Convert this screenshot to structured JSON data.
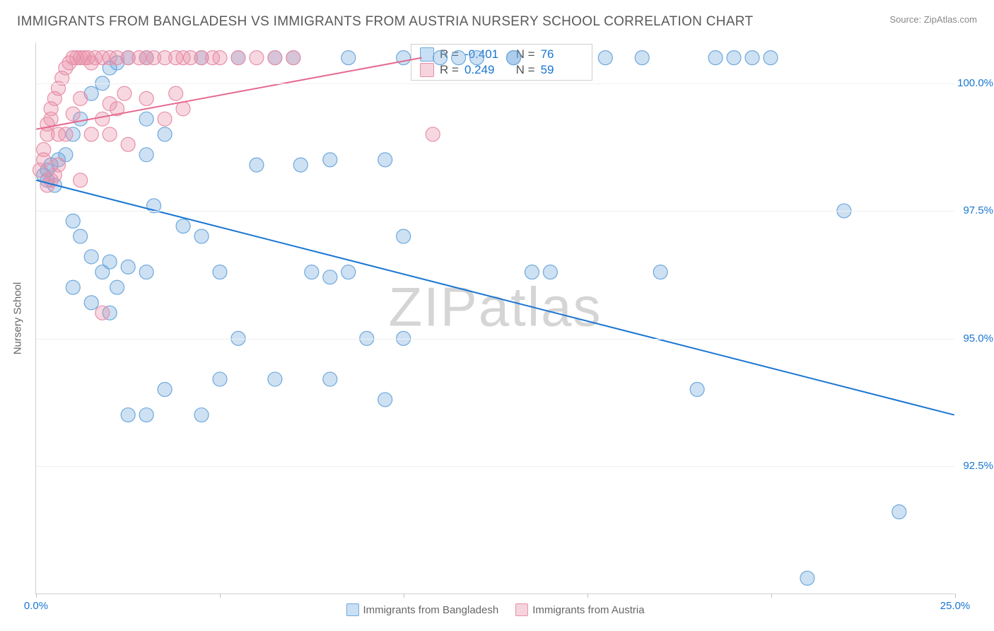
{
  "title": "IMMIGRANTS FROM BANGLADESH VS IMMIGRANTS FROM AUSTRIA NURSERY SCHOOL CORRELATION CHART",
  "source": "Source: ZipAtlas.com",
  "watermark": "ZIPatlas",
  "chart": {
    "type": "scatter",
    "ylabel": "Nursery School",
    "xlim": [
      0,
      25
    ],
    "ylim": [
      90.0,
      100.8
    ],
    "ytick_values": [
      92.5,
      95.0,
      97.5,
      100.0
    ],
    "ytick_labels": [
      "92.5%",
      "95.0%",
      "97.5%",
      "100.0%"
    ],
    "xtick_values": [
      0,
      5,
      10,
      15,
      20,
      25
    ],
    "xtick_labels": [
      "0.0%",
      "",
      "",
      "",
      "",
      "25.0%"
    ],
    "grid_color": "#f0f0f0",
    "axis_color": "#d0d0d0",
    "label_color": "#1976d2",
    "marker_radius": 10,
    "marker_fill_opacity": 0.35,
    "line_width": 2,
    "series": [
      {
        "name": "Immigrants from Bangladesh",
        "color": "#6fa8dc",
        "line_color": "#1976d2",
        "R": "-0.401",
        "N": "76",
        "regression": {
          "x1": 0,
          "y1": 98.1,
          "x2": 25,
          "y2": 93.5
        },
        "points": [
          [
            0.2,
            98.2
          ],
          [
            0.3,
            98.3
          ],
          [
            0.3,
            98.1
          ],
          [
            0.5,
            98.0
          ],
          [
            0.4,
            98.4
          ],
          [
            0.6,
            98.5
          ],
          [
            0.8,
            98.6
          ],
          [
            1.0,
            99.0
          ],
          [
            1.2,
            99.3
          ],
          [
            1.5,
            99.8
          ],
          [
            1.8,
            100.0
          ],
          [
            2.0,
            100.3
          ],
          [
            2.2,
            100.4
          ],
          [
            2.5,
            100.5
          ],
          [
            3.0,
            100.5
          ],
          [
            3.0,
            99.3
          ],
          [
            3.0,
            98.6
          ],
          [
            1.0,
            97.3
          ],
          [
            1.2,
            97.0
          ],
          [
            1.5,
            96.6
          ],
          [
            1.8,
            96.3
          ],
          [
            2.0,
            96.5
          ],
          [
            2.2,
            96.0
          ],
          [
            2.5,
            96.4
          ],
          [
            3.0,
            96.3
          ],
          [
            3.2,
            97.6
          ],
          [
            3.5,
            99.0
          ],
          [
            4.0,
            97.2
          ],
          [
            1.0,
            96.0
          ],
          [
            1.5,
            95.7
          ],
          [
            2.0,
            95.5
          ],
          [
            4.5,
            97.0
          ],
          [
            5.0,
            96.3
          ],
          [
            5.5,
            95.0
          ],
          [
            6.0,
            98.4
          ],
          [
            6.5,
            100.5
          ],
          [
            7.0,
            100.5
          ],
          [
            7.2,
            98.4
          ],
          [
            7.5,
            96.3
          ],
          [
            8.0,
            96.2
          ],
          [
            8.0,
            98.5
          ],
          [
            8.5,
            96.3
          ],
          [
            9.0,
            95.0
          ],
          [
            8.0,
            94.2
          ],
          [
            6.5,
            94.2
          ],
          [
            5.0,
            94.2
          ],
          [
            3.5,
            94.0
          ],
          [
            2.5,
            93.5
          ],
          [
            4.5,
            93.5
          ],
          [
            9.5,
            93.8
          ],
          [
            8.5,
            100.5
          ],
          [
            10.0,
            100.5
          ],
          [
            11.0,
            100.5
          ],
          [
            9.5,
            98.5
          ],
          [
            10.0,
            97.0
          ],
          [
            11.5,
            100.5
          ],
          [
            12.0,
            100.5
          ],
          [
            13.0,
            100.5
          ],
          [
            10.0,
            95.0
          ],
          [
            13.5,
            96.3
          ],
          [
            14.0,
            96.3
          ],
          [
            17.0,
            96.3
          ],
          [
            18.0,
            94.0
          ],
          [
            18.5,
            100.5
          ],
          [
            19.0,
            100.5
          ],
          [
            19.5,
            100.5
          ],
          [
            20.0,
            100.5
          ],
          [
            21.0,
            90.3
          ],
          [
            23.5,
            91.6
          ],
          [
            22.0,
            97.5
          ],
          [
            3.0,
            93.5
          ],
          [
            4.5,
            100.5
          ],
          [
            5.5,
            100.5
          ],
          [
            15.5,
            100.5
          ],
          [
            16.5,
            100.5
          ],
          [
            13.0,
            100.5
          ]
        ]
      },
      {
        "name": "Immigrants from Austria",
        "color": "#e890a8",
        "line_color": "#e56a8f",
        "R": "0.249",
        "N": "59",
        "regression": {
          "x1": 0,
          "y1": 99.1,
          "x2": 10.5,
          "y2": 100.5
        },
        "points": [
          [
            0.1,
            98.3
          ],
          [
            0.2,
            98.5
          ],
          [
            0.2,
            98.7
          ],
          [
            0.3,
            99.0
          ],
          [
            0.3,
            99.2
          ],
          [
            0.4,
            99.3
          ],
          [
            0.4,
            99.5
          ],
          [
            0.5,
            98.2
          ],
          [
            0.5,
            99.7
          ],
          [
            0.6,
            99.0
          ],
          [
            0.6,
            99.9
          ],
          [
            0.7,
            100.1
          ],
          [
            0.8,
            99.0
          ],
          [
            0.8,
            100.3
          ],
          [
            0.9,
            100.4
          ],
          [
            1.0,
            99.4
          ],
          [
            1.0,
            100.5
          ],
          [
            1.1,
            100.5
          ],
          [
            1.2,
            99.7
          ],
          [
            1.2,
            100.5
          ],
          [
            1.3,
            100.5
          ],
          [
            1.4,
            100.5
          ],
          [
            1.5,
            99.0
          ],
          [
            1.5,
            100.4
          ],
          [
            1.6,
            100.5
          ],
          [
            1.8,
            100.5
          ],
          [
            1.8,
            99.3
          ],
          [
            2.0,
            100.5
          ],
          [
            2.0,
            99.0
          ],
          [
            2.2,
            100.5
          ],
          [
            2.2,
            99.5
          ],
          [
            2.5,
            100.5
          ],
          [
            2.5,
            98.8
          ],
          [
            2.8,
            100.5
          ],
          [
            3.0,
            100.5
          ],
          [
            3.0,
            99.7
          ],
          [
            3.2,
            100.5
          ],
          [
            3.5,
            100.5
          ],
          [
            3.5,
            99.3
          ],
          [
            3.8,
            100.5
          ],
          [
            4.0,
            100.5
          ],
          [
            4.0,
            99.5
          ],
          [
            4.2,
            100.5
          ],
          [
            4.5,
            100.5
          ],
          [
            4.8,
            100.5
          ],
          [
            5.0,
            100.5
          ],
          [
            5.5,
            100.5
          ],
          [
            6.0,
            100.5
          ],
          [
            6.5,
            100.5
          ],
          [
            7.0,
            100.5
          ],
          [
            0.3,
            98.0
          ],
          [
            0.4,
            98.1
          ],
          [
            0.6,
            98.4
          ],
          [
            1.2,
            98.1
          ],
          [
            1.8,
            95.5
          ],
          [
            2.0,
            99.6
          ],
          [
            2.4,
            99.8
          ],
          [
            10.8,
            99.0
          ],
          [
            3.8,
            99.8
          ]
        ]
      }
    ]
  },
  "legend": {
    "items": [
      {
        "label": "Immigrants from Bangladesh",
        "fill": "#c8dff5",
        "border": "#6fa8dc"
      },
      {
        "label": "Immigrants from Austria",
        "fill": "#f5d4de",
        "border": "#e890a8"
      }
    ]
  }
}
